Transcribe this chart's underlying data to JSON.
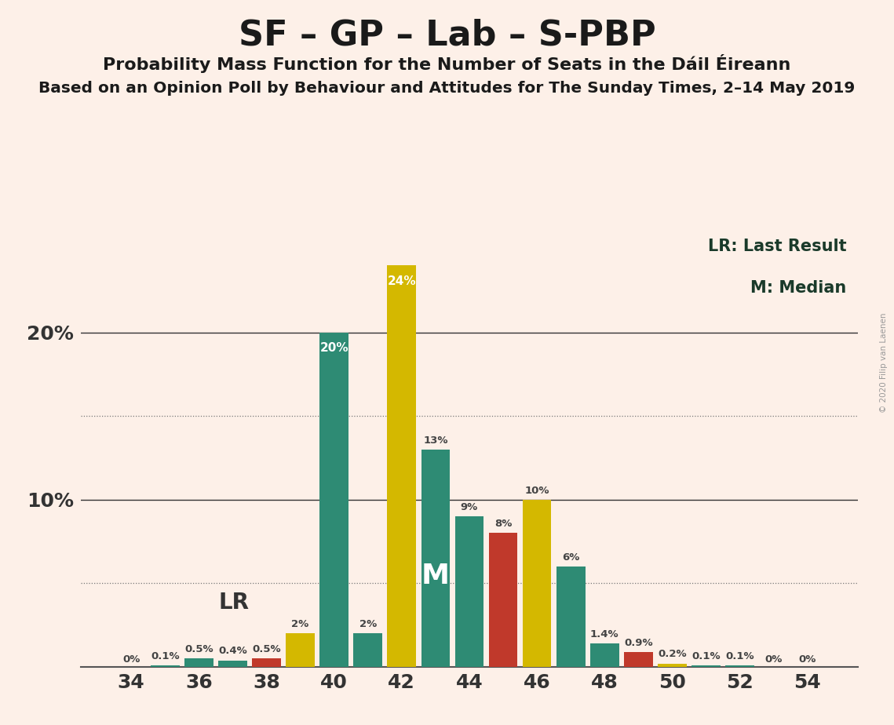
{
  "title": "SF – GP – Lab – S-PBP",
  "subtitle": "Probability Mass Function for the Number of Seats in the Dáil Éireann",
  "subtitle2": "Based on an Opinion Poll by Behaviour and Attitudes for The Sunday Times, 2–14 May 2019",
  "watermark": "© 2020 Filip van Laenen",
  "seats": [
    34,
    35,
    36,
    37,
    38,
    39,
    40,
    41,
    42,
    43,
    44,
    45,
    46,
    47,
    48,
    49,
    50,
    51,
    52,
    53,
    54
  ],
  "values": [
    0.0,
    0.1,
    0.5,
    0.4,
    0.5,
    2.0,
    20.0,
    2.0,
    24.0,
    13.0,
    9.0,
    8.0,
    10.0,
    6.0,
    1.4,
    0.9,
    0.2,
    0.1,
    0.1,
    0.0,
    0.0
  ],
  "labels": [
    "0%",
    "0.1%",
    "0.5%",
    "0.4%",
    "0.5%",
    "2%",
    "20%",
    "2%",
    "24%",
    "13%",
    "9%",
    "8%",
    "10%",
    "6%",
    "1.4%",
    "0.9%",
    "0.2%",
    "0.1%",
    "0.1%",
    "0%",
    "0%"
  ],
  "colors": [
    "#fdf0e8",
    "#2e8b74",
    "#2e8b74",
    "#2e8b74",
    "#c0392b",
    "#d4b800",
    "#2e8b74",
    "#2e8b74",
    "#d4b800",
    "#2e8b74",
    "#2e8b74",
    "#c0392b",
    "#d4b800",
    "#2e8b74",
    "#2e8b74",
    "#c0392b",
    "#d4b800",
    "#2e8b74",
    "#2e8b74",
    "#2e8b74",
    "#fdf0e8"
  ],
  "xtick_positions": [
    34,
    36,
    38,
    40,
    42,
    44,
    46,
    48,
    50,
    52,
    54
  ],
  "xtick_labels": [
    "34",
    "36",
    "38",
    "40",
    "42",
    "44",
    "46",
    "48",
    "50",
    "52",
    "54"
  ],
  "ylim": [
    0,
    26
  ],
  "background_color": "#fdf0e8",
  "dotted_lines": [
    5.0,
    15.0
  ],
  "solid_lines": [
    10.0,
    20.0
  ],
  "median_seat": 43,
  "lr_seat": 38,
  "bar_width": 0.85,
  "legend_lr": "LR: Last Result",
  "legend_m": "M: Median"
}
